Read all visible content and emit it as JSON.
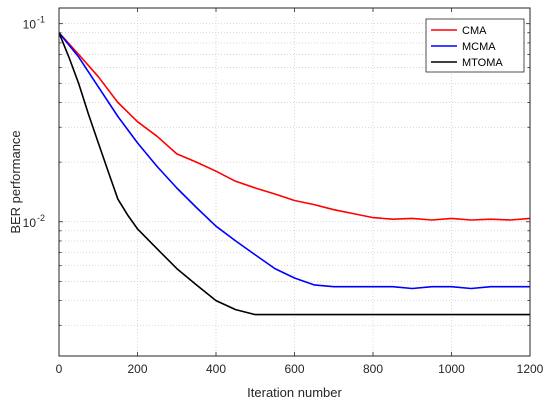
{
  "chart_data": {
    "type": "line",
    "title": "",
    "xlabel": "Iteration number",
    "ylabel": "BER performance",
    "xlim": [
      0,
      1200
    ],
    "ylim": [
      0.0021,
      0.12
    ],
    "yscale": "log",
    "grid": true,
    "legend_position": "top-right",
    "x_ticks": [
      0,
      200,
      400,
      600,
      800,
      1000,
      1200
    ],
    "x_tick_labels": [
      "0",
      "200",
      "400",
      "600",
      "800",
      "1000",
      "1200"
    ],
    "y_ticks": [
      0.1,
      0.01
    ],
    "y_tick_labels": [
      {
        "base": "10",
        "exp": "-1"
      },
      {
        "base": "10",
        "exp": "-2"
      }
    ],
    "series": [
      {
        "name": "CMA",
        "color": "#ff0000",
        "x": [
          0,
          50,
          100,
          150,
          200,
          250,
          300,
          350,
          400,
          450,
          500,
          550,
          600,
          650,
          700,
          750,
          800,
          850,
          900,
          950,
          1000,
          1050,
          1100,
          1150,
          1200
        ],
        "y": [
          0.09,
          0.07,
          0.054,
          0.04,
          0.032,
          0.027,
          0.022,
          0.02,
          0.018,
          0.016,
          0.0148,
          0.0138,
          0.0128,
          0.0122,
          0.0115,
          0.011,
          0.0105,
          0.0103,
          0.0104,
          0.0102,
          0.0104,
          0.0102,
          0.0103,
          0.0102,
          0.0104
        ]
      },
      {
        "name": "MCMA",
        "color": "#0000ff",
        "x": [
          0,
          50,
          100,
          150,
          200,
          250,
          300,
          350,
          400,
          450,
          500,
          550,
          600,
          650,
          700,
          750,
          800,
          850,
          900,
          950,
          1000,
          1050,
          1100,
          1150,
          1200
        ],
        "y": [
          0.09,
          0.068,
          0.048,
          0.034,
          0.025,
          0.019,
          0.0148,
          0.0118,
          0.0095,
          0.008,
          0.0068,
          0.0058,
          0.0052,
          0.0048,
          0.0047,
          0.0047,
          0.0047,
          0.0047,
          0.0046,
          0.0047,
          0.0047,
          0.0046,
          0.0047,
          0.0047,
          0.0047
        ]
      },
      {
        "name": "MTOMA",
        "color": "#000000",
        "x": [
          0,
          25,
          50,
          75,
          100,
          125,
          150,
          175,
          200,
          250,
          300,
          350,
          400,
          450,
          500,
          550,
          600,
          650,
          700,
          750,
          800,
          850,
          900,
          950,
          1000,
          1050,
          1100,
          1150,
          1200
        ],
        "y": [
          0.09,
          0.068,
          0.05,
          0.035,
          0.025,
          0.018,
          0.013,
          0.0108,
          0.0092,
          0.0073,
          0.0058,
          0.0048,
          0.004,
          0.0036,
          0.0034,
          0.0034,
          0.0034,
          0.0034,
          0.0034,
          0.0034,
          0.0034,
          0.0034,
          0.0034,
          0.0034,
          0.0034,
          0.0034,
          0.0034,
          0.0034,
          0.0034
        ]
      }
    ]
  }
}
